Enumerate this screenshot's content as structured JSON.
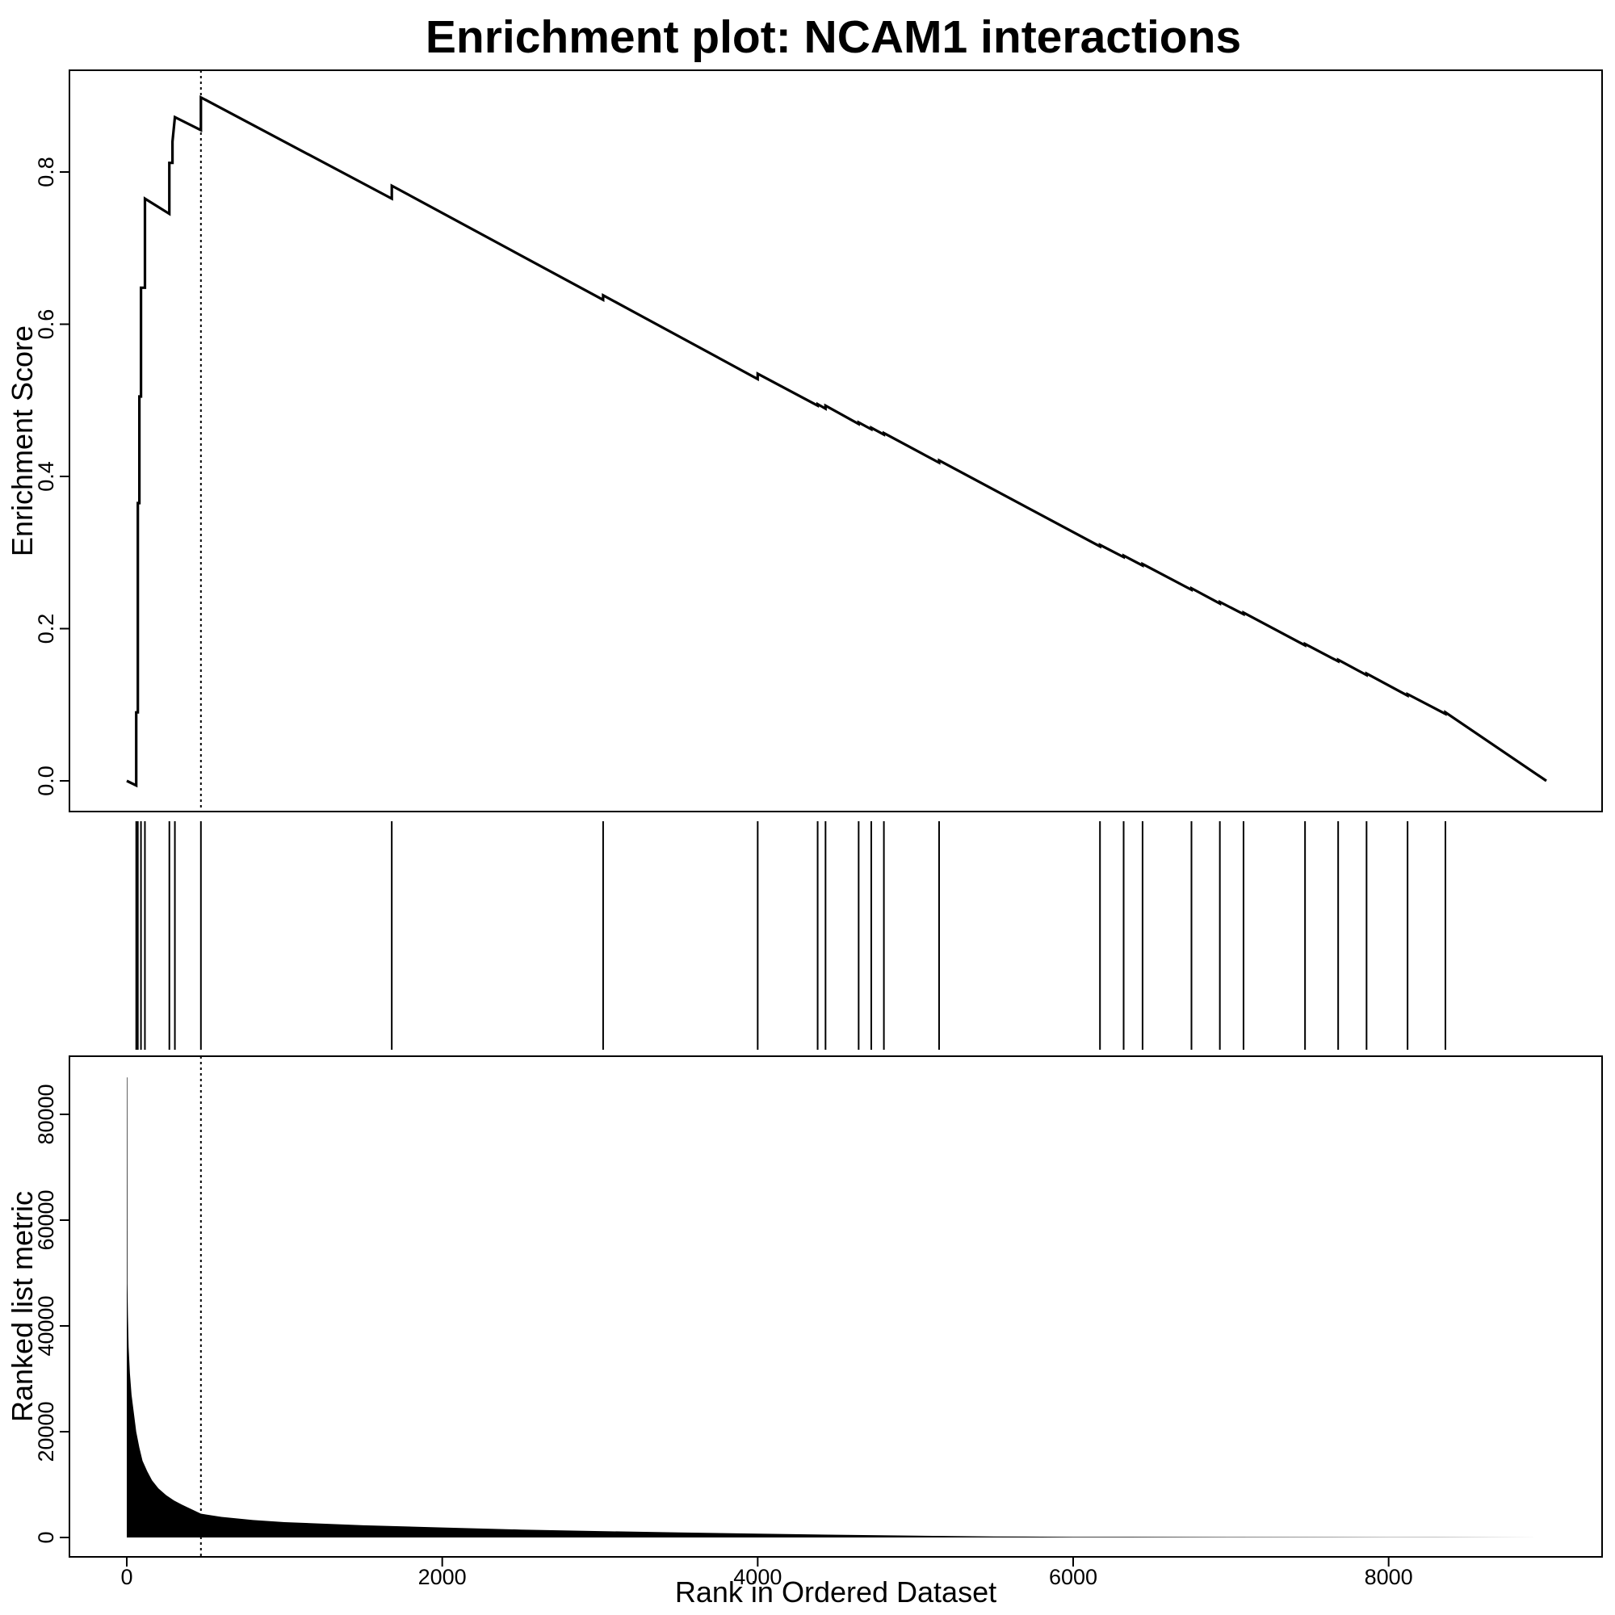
{
  "chart_data": {
    "type": "line",
    "title": "Enrichment plot: NCAM1 interactions",
    "xlabel": "Rank in Ordered Dataset",
    "xlim": [
      0,
      9000
    ],
    "x_ticks": [
      {
        "value": 0,
        "label": "0"
      },
      {
        "value": 2000,
        "label": "2000"
      },
      {
        "value": 4000,
        "label": "4000"
      },
      {
        "value": 6000,
        "label": "6000"
      },
      {
        "value": 8000,
        "label": "8000"
      }
    ],
    "peak_rank": 470,
    "panels": [
      {
        "id": "enrichment",
        "ylabel": "Enrichment Score",
        "ylim": [
          -0.02,
          0.9
        ],
        "y_ticks": [
          {
            "value": 0.0,
            "label": "0.0"
          },
          {
            "value": 0.2,
            "label": "0.2"
          },
          {
            "value": 0.4,
            "label": "0.4"
          },
          {
            "value": 0.6,
            "label": "0.6"
          },
          {
            "value": 0.8,
            "label": "0.8"
          }
        ],
        "series": [
          {
            "x": [
              0,
              60,
              60,
              70,
              70,
              80,
              80,
              90,
              90,
              115,
              115,
              270,
              270,
              290,
              290,
              305,
              305,
              470,
              470,
              1680,
              1680,
              3020,
              3020,
              4000,
              4000,
              4380,
              4380,
              4430,
              4430,
              4640,
              4640,
              4720,
              4720,
              4800,
              4800,
              5150,
              5150,
              6170,
              6170,
              6320,
              6320,
              6440,
              6440,
              6750,
              6750,
              6930,
              6930,
              7080,
              7080,
              7470,
              7470,
              7680,
              7680,
              7860,
              7860,
              8120,
              8120,
              8360,
              8360,
              9000
            ],
            "y": [
              0.0,
              -0.006,
              0.09,
              0.09,
              0.365,
              0.365,
              0.505,
              0.505,
              0.648,
              0.648,
              0.765,
              0.745,
              0.812,
              0.812,
              0.84,
              0.872,
              0.872,
              0.855,
              0.898,
              0.765,
              0.782,
              0.632,
              0.638,
              0.528,
              0.535,
              0.493,
              0.495,
              0.489,
              0.493,
              0.469,
              0.471,
              0.462,
              0.464,
              0.455,
              0.457,
              0.418,
              0.421,
              0.308,
              0.31,
              0.294,
              0.296,
              0.283,
              0.285,
              0.251,
              0.253,
              0.233,
              0.235,
              0.219,
              0.221,
              0.178,
              0.18,
              0.157,
              0.159,
              0.139,
              0.141,
              0.112,
              0.114,
              0.088,
              0.09,
              0.0
            ]
          }
        ]
      },
      {
        "id": "hits",
        "type": "rug",
        "hit_ranks": [
          60,
          70,
          90,
          115,
          270,
          305,
          470,
          1680,
          3020,
          4000,
          4380,
          4430,
          4640,
          4720,
          4800,
          5150,
          6170,
          6320,
          6440,
          6750,
          6930,
          7080,
          7470,
          7680,
          7860,
          8120,
          8360
        ]
      },
      {
        "id": "ranked-metric",
        "type": "area",
        "ylabel": "Ranked list metric",
        "ylim": [
          -2500,
          88000
        ],
        "y_ticks": [
          {
            "value": 0,
            "label": "0"
          },
          {
            "value": 20000,
            "label": "20000"
          },
          {
            "value": 40000,
            "label": "40000"
          },
          {
            "value": 60000,
            "label": "60000"
          },
          {
            "value": 80000,
            "label": "80000"
          }
        ],
        "series": [
          {
            "x": [
              0,
              3,
              4,
              7,
              12,
              20,
              30,
              45,
              60,
              80,
              100,
              130,
              160,
              200,
              250,
              300,
              350,
              400,
              470,
              600,
              800,
              1000,
              1500,
              2000,
              2500,
              3000,
              3500,
              4000,
              4500,
              5000,
              5500,
              6000,
              7000,
              8000,
              9000
            ],
            "y": [
              87000,
              87000,
              48000,
              42000,
              36000,
              31000,
              27000,
              23500,
              20000,
              17000,
              14500,
              12500,
              10800,
              9300,
              8000,
              7000,
              6200,
              5500,
              4500,
              3900,
              3300,
              2900,
              2300,
              1900,
              1500,
              1200,
              950,
              720,
              520,
              340,
              200,
              120,
              80,
              50,
              0
            ]
          }
        ]
      }
    ]
  }
}
